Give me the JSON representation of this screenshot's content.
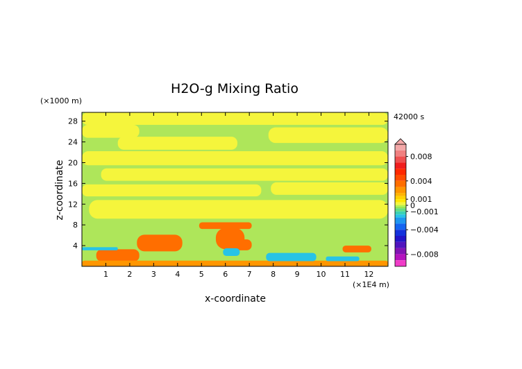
{
  "chart_data": {
    "type": "heatmap",
    "title": "H2O-g Mixing Ratio",
    "xlabel": "x-coordinate",
    "ylabel": "z-coordinate",
    "x_unit": "(×1E4 m)",
    "y_unit": "(×1000 m)",
    "time_label": "42000 s",
    "xlim": [
      0,
      12.8
    ],
    "ylim": [
      0,
      29.7
    ],
    "x_ticks": [
      "1",
      "2",
      "3",
      "4",
      "5",
      "6",
      "7",
      "8",
      "9",
      "10",
      "11",
      "12"
    ],
    "y_ticks": [
      "4",
      "8",
      "12",
      "16",
      "20",
      "24",
      "28"
    ],
    "colorbar": {
      "range": [
        -0.01,
        0.01
      ],
      "tick_labels": [
        {
          "label": "0.008",
          "value": 0.008
        },
        {
          "label": "0.004",
          "value": 0.004
        },
        {
          "label": "0.001",
          "value": 0.001
        },
        {
          "label": "0",
          "value": 0
        },
        {
          "label": "−0.001",
          "value": -0.001
        },
        {
          "label": "−0.004",
          "value": -0.004
        },
        {
          "label": "−0.008",
          "value": -0.008
        }
      ],
      "levels": [
        {
          "lo": 0.009,
          "color": "#f4a8a8"
        },
        {
          "lo": 0.008,
          "color": "#f08080"
        },
        {
          "lo": 0.007,
          "color": "#ee5050"
        },
        {
          "lo": 0.006,
          "color": "#f01e1e"
        },
        {
          "lo": 0.005,
          "color": "#ff2800"
        },
        {
          "lo": 0.004,
          "color": "#ff4b00"
        },
        {
          "lo": 0.003,
          "color": "#ff6e00"
        },
        {
          "lo": 0.002,
          "color": "#ff9600"
        },
        {
          "lo": 0.0015,
          "color": "#ffb400"
        },
        {
          "lo": 0.001,
          "color": "#ffd200"
        },
        {
          "lo": 0.0005,
          "color": "#ffe600"
        },
        {
          "lo": 0.0002,
          "color": "#f5f53c"
        },
        {
          "lo": 0.0,
          "color": "#e6f53c"
        },
        {
          "lo": -0.0002,
          "color": "#b4f050"
        },
        {
          "lo": -0.0005,
          "color": "#96e650"
        },
        {
          "lo": -0.001,
          "color": "#64dc82"
        },
        {
          "lo": -0.0015,
          "color": "#3cd2b4"
        },
        {
          "lo": -0.002,
          "color": "#28c3e6"
        },
        {
          "lo": -0.003,
          "color": "#1e96f0"
        },
        {
          "lo": -0.004,
          "color": "#1464f0"
        },
        {
          "lo": -0.005,
          "color": "#1432dc"
        },
        {
          "lo": -0.006,
          "color": "#2314c8"
        },
        {
          "lo": -0.007,
          "color": "#5014be"
        },
        {
          "lo": -0.008,
          "color": "#8214b4"
        },
        {
          "lo": -0.009,
          "color": "#b414be"
        },
        {
          "lo": -0.01,
          "color": "#f03cc8"
        }
      ]
    },
    "field": {
      "background": "#aee65a",
      "regions": [
        {
          "x": [
            0.0,
            12.8
          ],
          "y": [
            27.3,
            29.7
          ],
          "value": 0.0003
        },
        {
          "x": [
            0.0,
            2.4
          ],
          "y": [
            24.8,
            27.3
          ],
          "value": 0.0003
        },
        {
          "x": [
            7.8,
            12.8
          ],
          "y": [
            23.8,
            26.8
          ],
          "value": 0.0003
        },
        {
          "x": [
            1.5,
            6.5
          ],
          "y": [
            22.5,
            25.0
          ],
          "value": 0.0003
        },
        {
          "x": [
            0.0,
            12.8
          ],
          "y": [
            19.5,
            22.2
          ],
          "value": 0.0003
        },
        {
          "x": [
            0.8,
            12.8
          ],
          "y": [
            16.5,
            18.9
          ],
          "value": 0.0003
        },
        {
          "x": [
            0.0,
            7.5
          ],
          "y": [
            13.5,
            15.8
          ],
          "value": 0.0003
        },
        {
          "x": [
            7.9,
            12.8
          ],
          "y": [
            13.8,
            16.2
          ],
          "value": 0.0003
        },
        {
          "x": [
            0.3,
            12.8
          ],
          "y": [
            9.2,
            12.8
          ],
          "value": 0.0003
        },
        {
          "x": [
            2.3,
            4.2
          ],
          "y": [
            2.9,
            6.1
          ],
          "value": 0.003
        },
        {
          "x": [
            4.9,
            7.1
          ],
          "y": [
            7.2,
            8.5
          ],
          "value": 0.003
        },
        {
          "x": [
            5.6,
            6.8
          ],
          "y": [
            3.3,
            7.4
          ],
          "value": 0.003
        },
        {
          "x": [
            6.3,
            7.1
          ],
          "y": [
            3.1,
            5.2
          ],
          "value": 0.003
        },
        {
          "x": [
            10.9,
            12.1
          ],
          "y": [
            2.7,
            4.0
          ],
          "value": 0.003
        },
        {
          "x": [
            0.6,
            2.4
          ],
          "y": [
            0.9,
            3.3
          ],
          "value": 0.003
        },
        {
          "x": [
            0.0,
            12.8
          ],
          "y": [
            0.0,
            1.1
          ],
          "value": 0.002
        },
        {
          "x": [
            5.9,
            6.6
          ],
          "y": [
            2.0,
            3.5
          ],
          "value": -0.002
        },
        {
          "x": [
            7.7,
            9.8
          ],
          "y": [
            1.0,
            2.6
          ],
          "value": -0.002
        },
        {
          "x": [
            10.2,
            11.6
          ],
          "y": [
            1.0,
            1.9
          ],
          "value": -0.002
        },
        {
          "x": [
            0.0,
            1.5
          ],
          "y": [
            3.1,
            3.7
          ],
          "value": -0.002
        }
      ]
    }
  }
}
